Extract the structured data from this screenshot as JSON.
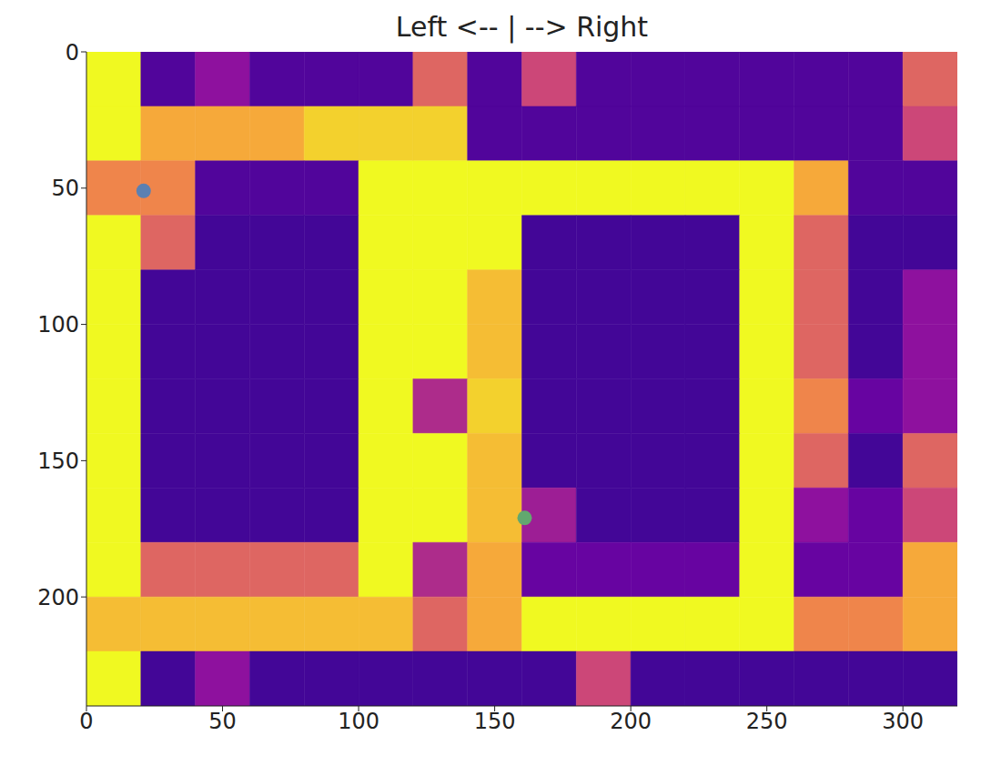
{
  "chart_data": {
    "type": "heatmap",
    "title": "Left <-- | --> Right",
    "xlim": [
      0,
      320
    ],
    "ylim": [
      240,
      0
    ],
    "xticks": [
      0,
      50,
      100,
      150,
      200,
      250,
      300
    ],
    "yticks": [
      0,
      50,
      100,
      150,
      200
    ],
    "grid": false,
    "x_edges": [
      0,
      20,
      40,
      60,
      80,
      100,
      120,
      140,
      160,
      180,
      200,
      220,
      240,
      260,
      280,
      300,
      320
    ],
    "y_edges": [
      0,
      20,
      40,
      60,
      80,
      100,
      120,
      140,
      160,
      180,
      200,
      220,
      240
    ],
    "cells": [
      [
        1,
        0.15,
        0.3,
        0.15,
        0.15,
        0.15,
        0.6,
        0.15,
        0.5,
        0.15,
        0.15,
        0.15,
        0.15,
        0.15,
        0.15,
        0.6
      ],
      [
        1,
        0.8,
        0.8,
        0.8,
        0.9,
        0.9,
        0.9,
        0.15,
        0.15,
        0.15,
        0.15,
        0.15,
        0.15,
        0.15,
        0.15,
        0.5
      ],
      [
        0.7,
        0.7,
        0.15,
        0.15,
        0.15,
        1,
        1,
        1,
        1,
        1,
        1,
        1,
        1,
        0.8,
        0.15,
        0.15
      ],
      [
        1,
        0.6,
        0.12,
        0.12,
        0.12,
        1,
        1,
        1,
        0.12,
        0.12,
        0.12,
        0.12,
        1,
        0.6,
        0.12,
        0.12
      ],
      [
        1,
        0.12,
        0.12,
        0.12,
        0.12,
        1,
        1,
        0.85,
        0.12,
        0.12,
        0.12,
        0.12,
        1,
        0.6,
        0.12,
        0.3
      ],
      [
        1,
        0.12,
        0.12,
        0.12,
        0.12,
        1,
        1,
        0.85,
        0.12,
        0.12,
        0.12,
        0.12,
        1,
        0.6,
        0.12,
        0.3
      ],
      [
        1,
        0.12,
        0.12,
        0.12,
        0.12,
        1,
        0.4,
        0.9,
        0.12,
        0.12,
        0.12,
        0.12,
        1,
        0.7,
        0.2,
        0.3
      ],
      [
        1,
        0.12,
        0.12,
        0.12,
        0.12,
        1,
        1,
        0.85,
        0.12,
        0.12,
        0.12,
        0.12,
        1,
        0.6,
        0.12,
        0.6
      ],
      [
        1,
        0.12,
        0.12,
        0.12,
        0.12,
        1,
        1,
        0.85,
        0.35,
        0.12,
        0.12,
        0.12,
        1,
        0.3,
        0.2,
        0.5
      ],
      [
        1,
        0.6,
        0.6,
        0.6,
        0.6,
        1,
        0.4,
        0.8,
        0.2,
        0.2,
        0.2,
        0.2,
        1,
        0.2,
        0.2,
        0.8
      ],
      [
        0.85,
        0.85,
        0.85,
        0.85,
        0.85,
        0.85,
        0.6,
        0.8,
        1,
        1,
        1,
        1,
        1,
        0.7,
        0.7,
        0.8
      ],
      [
        1,
        0.12,
        0.3,
        0.12,
        0.12,
        0.12,
        0.12,
        0.12,
        0.12,
        0.5,
        0.12,
        0.12,
        0.12,
        0.12,
        0.12,
        0.12
      ]
    ],
    "points": [
      {
        "x": 21,
        "y": 51,
        "color": "#5b80b2"
      },
      {
        "x": 161,
        "y": 171,
        "color": "#62a86f"
      }
    ]
  }
}
